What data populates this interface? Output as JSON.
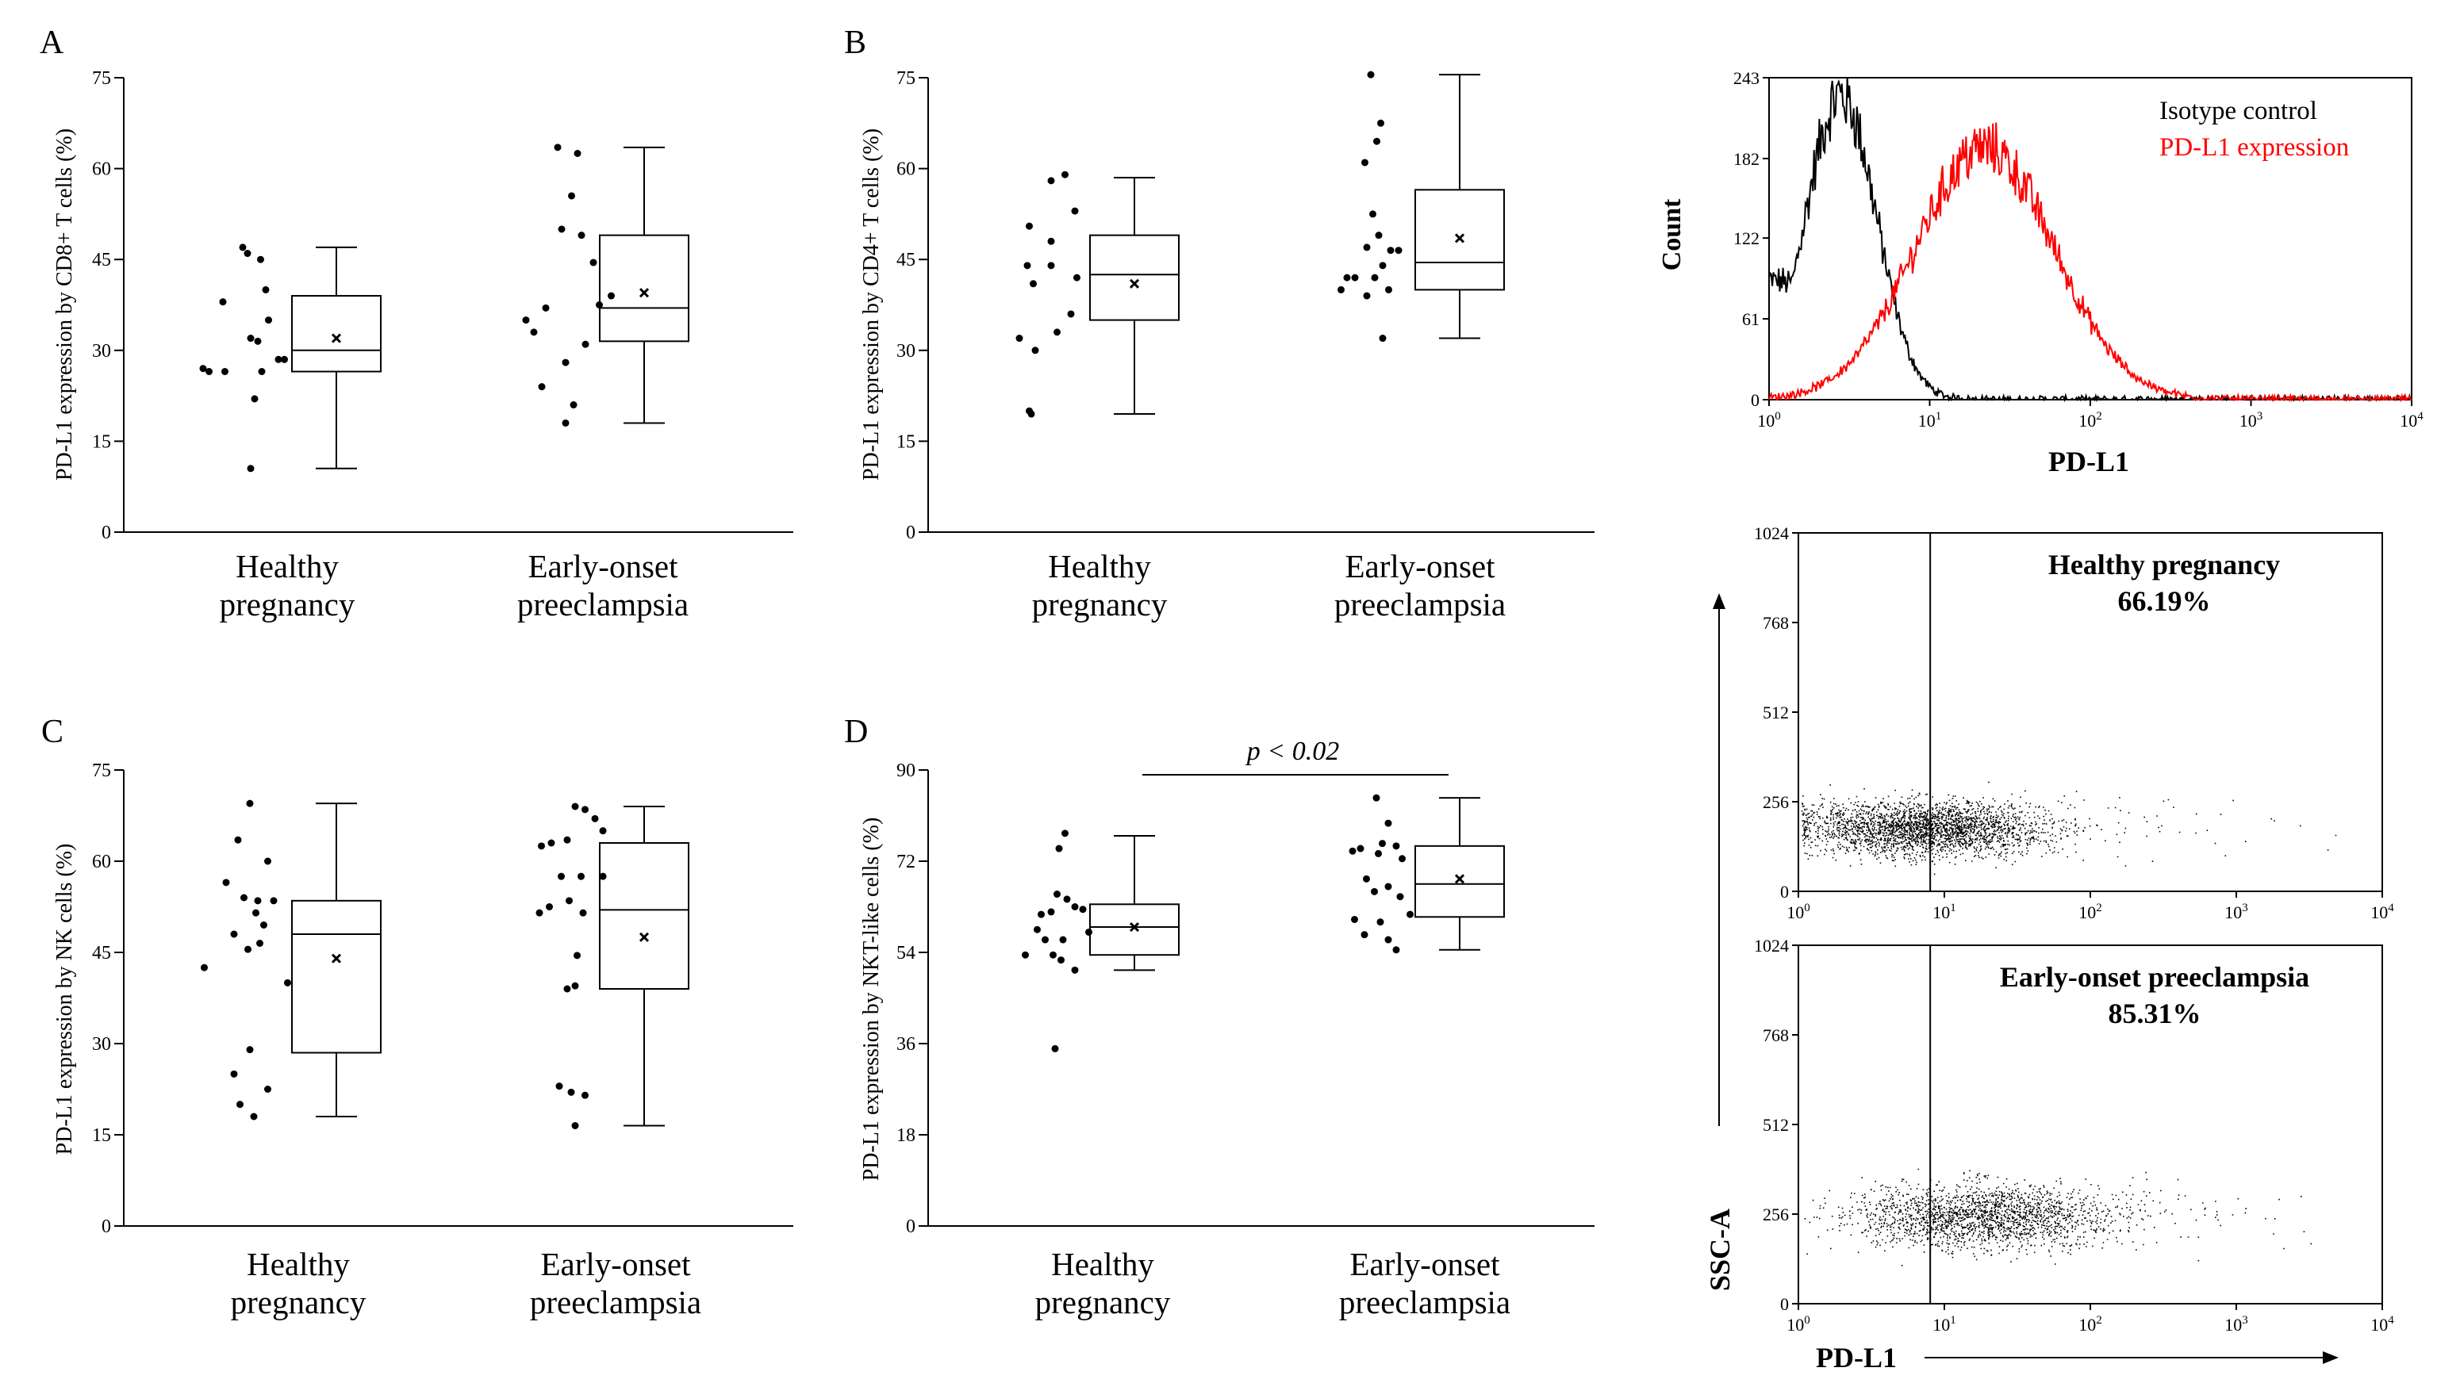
{
  "panels": {
    "A": {
      "letter": "A",
      "ylabel": "PD-L1 expression by CD8+ T cells (%)"
    },
    "B": {
      "letter": "B",
      "ylabel": "PD-L1 expression by CD4+ T cells (%)"
    },
    "C": {
      "letter": "C",
      "ylabel": "PD-L1 expression by NK cells (%)"
    },
    "D": {
      "letter": "D",
      "ylabel": "PD-L1 expression by NKT-like cells (%)",
      "annotation": "p < 0.02"
    }
  },
  "groups": {
    "healthy": [
      "Healthy",
      "pregnancy"
    ],
    "pe": [
      "Early-onset",
      "preeclampsia"
    ]
  },
  "histogram": {
    "ylabel": "Count",
    "xlabel": "PD-L1",
    "legend_iso": "Isotype control",
    "legend_pdl1": "PD-L1 expression",
    "color_iso": "#000000",
    "color_pdl1": "#ff0000"
  },
  "flow": {
    "ylabel": "SSC-A",
    "xlabel": "PD-L1",
    "healthy_title": "Healthy pregnancy",
    "healthy_value": "66.19%",
    "pe_title": "Early-onset preeclampsia",
    "pe_value": "85.31%"
  },
  "chart_data": [
    {
      "type": "box",
      "id": "A",
      "ylabel": "PD-L1 expression by CD8+ T cells (%)",
      "ylim": [
        0,
        75
      ],
      "yticks": [
        0,
        15,
        30,
        45,
        60,
        75
      ],
      "categories": [
        "Healthy pregnancy",
        "Early-onset preeclampsia"
      ],
      "boxes": [
        {
          "min": 10.5,
          "q1": 26.5,
          "median": 30,
          "q3": 39,
          "max": 47,
          "mean": 32
        },
        {
          "min": 18,
          "q1": 31.5,
          "median": 37,
          "q3": 49,
          "max": 63.5,
          "mean": 39.5
        }
      ],
      "points": [
        [
          {
            "x": 0,
            "y": 47
          },
          {
            "x": 0.12,
            "y": 46
          },
          {
            "x": 0.45,
            "y": 45
          },
          {
            "x": 0.58,
            "y": 40
          },
          {
            "x": -0.5,
            "y": 38
          },
          {
            "x": 0.65,
            "y": 35
          },
          {
            "x": 0.2,
            "y": 32
          },
          {
            "x": 0.38,
            "y": 31.5
          },
          {
            "x": 0.9,
            "y": 28.5
          },
          {
            "x": 1.05,
            "y": 28.5
          },
          {
            "x": -1.0,
            "y": 27
          },
          {
            "x": -0.85,
            "y": 26.5
          },
          {
            "x": -0.45,
            "y": 26.5
          },
          {
            "x": 0.48,
            "y": 26.5
          },
          {
            "x": 0.3,
            "y": 22
          },
          {
            "x": 0.2,
            "y": 10.5
          }
        ],
        [
          {
            "x": -0.3,
            "y": 63.5
          },
          {
            "x": 0.2,
            "y": 62.5
          },
          {
            "x": 0.05,
            "y": 55.5
          },
          {
            "x": -0.2,
            "y": 50
          },
          {
            "x": 0.3,
            "y": 49
          },
          {
            "x": 0.6,
            "y": 44.5
          },
          {
            "x": 1.05,
            "y": 39
          },
          {
            "x": 0.75,
            "y": 37.5
          },
          {
            "x": -0.6,
            "y": 37
          },
          {
            "x": -1.1,
            "y": 35
          },
          {
            "x": -0.9,
            "y": 33
          },
          {
            "x": 0.4,
            "y": 31
          },
          {
            "x": -0.1,
            "y": 28
          },
          {
            "x": -0.7,
            "y": 24
          },
          {
            "x": 0.1,
            "y": 21
          },
          {
            "x": -0.1,
            "y": 18
          }
        ]
      ]
    },
    {
      "type": "box",
      "id": "B",
      "ylabel": "PD-L1 expression by CD4+ T cells (%)",
      "ylim": [
        0,
        75
      ],
      "yticks": [
        0,
        15,
        30,
        45,
        60,
        75
      ],
      "categories": [
        "Healthy pregnancy",
        "Early-onset preeclampsia"
      ],
      "boxes": [
        {
          "min": 19.5,
          "q1": 35,
          "median": 42.5,
          "q3": 49,
          "max": 58.5,
          "mean": 41
        },
        {
          "min": 32,
          "q1": 40,
          "median": 44.5,
          "q3": 56.5,
          "max": 75.5,
          "mean": 48.5
        }
      ],
      "points": [
        [
          {
            "x": 0.45,
            "y": 59
          },
          {
            "x": 0.1,
            "y": 58
          },
          {
            "x": 0.7,
            "y": 53
          },
          {
            "x": -0.45,
            "y": 50.5
          },
          {
            "x": 0.1,
            "y": 48
          },
          {
            "x": -0.5,
            "y": 44
          },
          {
            "x": 0.1,
            "y": 44
          },
          {
            "x": 0.75,
            "y": 42
          },
          {
            "x": -0.35,
            "y": 41
          },
          {
            "x": 0.6,
            "y": 36
          },
          {
            "x": 0.25,
            "y": 33
          },
          {
            "x": -0.7,
            "y": 32
          },
          {
            "x": -0.3,
            "y": 30
          },
          {
            "x": -0.45,
            "y": 20
          },
          {
            "x": -0.4,
            "y": 19.5
          }
        ],
        [
          {
            "x": 0.2,
            "y": 75.5
          },
          {
            "x": 0.45,
            "y": 67.5
          },
          {
            "x": 0.35,
            "y": 64.5
          },
          {
            "x": 0.05,
            "y": 61
          },
          {
            "x": 0.25,
            "y": 52.5
          },
          {
            "x": 0.4,
            "y": 49
          },
          {
            "x": 0.1,
            "y": 47
          },
          {
            "x": 0.7,
            "y": 46.5
          },
          {
            "x": 0.9,
            "y": 46.5
          },
          {
            "x": 0.5,
            "y": 44
          },
          {
            "x": -0.4,
            "y": 42
          },
          {
            "x": -0.2,
            "y": 42
          },
          {
            "x": 0.3,
            "y": 42
          },
          {
            "x": -0.55,
            "y": 40
          },
          {
            "x": 0.65,
            "y": 40
          },
          {
            "x": 0.1,
            "y": 39
          },
          {
            "x": 0.5,
            "y": 32
          }
        ]
      ]
    },
    {
      "type": "box",
      "id": "C",
      "ylabel": "PD-L1 expression by NK cells (%)",
      "ylim": [
        0,
        75
      ],
      "yticks": [
        0,
        15,
        30,
        45,
        60,
        75
      ],
      "categories": [
        "Healthy pregnancy",
        "Early-onset preeclampsia"
      ],
      "boxes": [
        {
          "min": 18,
          "q1": 28.5,
          "median": 48,
          "q3": 53.5,
          "max": 69.5,
          "mean": 44
        },
        {
          "min": 16.5,
          "q1": 39,
          "median": 52,
          "q3": 63,
          "max": 69,
          "mean": 47.5
        }
      ],
      "points": [
        [
          {
            "x": 0.1,
            "y": 69.5
          },
          {
            "x": -0.2,
            "y": 63.5
          },
          {
            "x": 0.55,
            "y": 60
          },
          {
            "x": -0.5,
            "y": 56.5
          },
          {
            "x": -0.05,
            "y": 54
          },
          {
            "x": 0.3,
            "y": 53.5
          },
          {
            "x": 0.7,
            "y": 53.5
          },
          {
            "x": 0.25,
            "y": 51.5
          },
          {
            "x": 0.45,
            "y": 49.5
          },
          {
            "x": -0.3,
            "y": 48
          },
          {
            "x": 0.35,
            "y": 46.5
          },
          {
            "x": 0.05,
            "y": 45.5
          },
          {
            "x": -1.05,
            "y": 42.5
          },
          {
            "x": 1.05,
            "y": 40
          },
          {
            "x": 0.1,
            "y": 29
          },
          {
            "x": -0.3,
            "y": 25
          },
          {
            "x": 0.55,
            "y": 22.5
          },
          {
            "x": -0.15,
            "y": 20
          },
          {
            "x": 0.2,
            "y": 18
          }
        ],
        [
          {
            "x": 0.1,
            "y": 69
          },
          {
            "x": 0.35,
            "y": 68.5
          },
          {
            "x": 0.6,
            "y": 67
          },
          {
            "x": 0.8,
            "y": 65
          },
          {
            "x": -0.1,
            "y": 63.5
          },
          {
            "x": -0.5,
            "y": 63
          },
          {
            "x": -0.75,
            "y": 62.5
          },
          {
            "x": -0.25,
            "y": 57.5
          },
          {
            "x": 0.25,
            "y": 57.5
          },
          {
            "x": 0.8,
            "y": 57.5
          },
          {
            "x": -0.05,
            "y": 53.5
          },
          {
            "x": -0.55,
            "y": 52.5
          },
          {
            "x": -0.8,
            "y": 51.5
          },
          {
            "x": 0.3,
            "y": 51.5
          },
          {
            "x": 0.15,
            "y": 44.5
          },
          {
            "x": 0.1,
            "y": 39.5
          },
          {
            "x": -0.1,
            "y": 39
          },
          {
            "x": -0.3,
            "y": 23
          },
          {
            "x": 0,
            "y": 22
          },
          {
            "x": 0.35,
            "y": 21.5
          },
          {
            "x": 0.1,
            "y": 16.5
          }
        ]
      ]
    },
    {
      "type": "box",
      "id": "D",
      "ylabel": "PD-L1 expression by NKT-like cells (%)",
      "ylim": [
        0,
        90
      ],
      "yticks": [
        0,
        18,
        36,
        54,
        72,
        90
      ],
      "categories": [
        "Healthy pregnancy",
        "Early-onset preeclampsia"
      ],
      "boxes": [
        {
          "min": 50.5,
          "q1": 53.5,
          "median": 59,
          "q3": 63.5,
          "max": 77,
          "mean": 59
        },
        {
          "min": 54.5,
          "q1": 61,
          "median": 67.5,
          "q3": 75,
          "max": 84.5,
          "mean": 68.5
        }
      ],
      "annotation": "p < 0.02",
      "points": [
        [
          {
            "x": 0.25,
            "y": 77.5
          },
          {
            "x": 0.1,
            "y": 74.5
          },
          {
            "x": 0.05,
            "y": 65.5
          },
          {
            "x": 0.3,
            "y": 64.5
          },
          {
            "x": 0.5,
            "y": 63
          },
          {
            "x": 0.7,
            "y": 62.5
          },
          {
            "x": -0.35,
            "y": 61.5
          },
          {
            "x": -0.1,
            "y": 62
          },
          {
            "x": -0.45,
            "y": 58.5
          },
          {
            "x": 0.85,
            "y": 58
          },
          {
            "x": -0.25,
            "y": 56.5
          },
          {
            "x": 0.2,
            "y": 56.5
          },
          {
            "x": -0.75,
            "y": 53.5
          },
          {
            "x": -0.05,
            "y": 53.5
          },
          {
            "x": 0.15,
            "y": 52.5
          },
          {
            "x": 0.5,
            "y": 50.5
          },
          {
            "x": 0,
            "y": 35
          }
        ],
        [
          {
            "x": 0.1,
            "y": 84.5
          },
          {
            "x": 0.4,
            "y": 79.5
          },
          {
            "x": 0.25,
            "y": 75.5
          },
          {
            "x": 0.6,
            "y": 75
          },
          {
            "x": -0.5,
            "y": 74
          },
          {
            "x": -0.3,
            "y": 74.5
          },
          {
            "x": 0.15,
            "y": 73.5
          },
          {
            "x": 0.75,
            "y": 72.5
          },
          {
            "x": -0.15,
            "y": 68.5
          },
          {
            "x": 0.4,
            "y": 67
          },
          {
            "x": 0.05,
            "y": 66
          },
          {
            "x": 0.7,
            "y": 65
          },
          {
            "x": 0.95,
            "y": 61.5
          },
          {
            "x": -0.45,
            "y": 60.5
          },
          {
            "x": 0.2,
            "y": 60
          },
          {
            "x": -0.2,
            "y": 57.5
          },
          {
            "x": 0.4,
            "y": 56.5
          },
          {
            "x": 0.6,
            "y": 54.5
          }
        ]
      ]
    },
    {
      "type": "histogram",
      "id": "E",
      "xlabel": "PD-L1",
      "ylabel": "Count",
      "xscale": "log",
      "xlim": [
        1,
        10000
      ],
      "ylim": [
        0,
        243
      ],
      "yticks": [
        0,
        61,
        122,
        182,
        243
      ],
      "xticks": [
        "10^0",
        "10^1",
        "10^2",
        "10^3",
        "10^4"
      ],
      "series": [
        {
          "name": "Isotype control",
          "color": "#000000",
          "peak_x": 2.8,
          "peak_count": 230,
          "log_sd": 0.22,
          "start_count": 90
        },
        {
          "name": "PD-L1 expression",
          "color": "#ff0000",
          "peak_x": 22,
          "peak_count": 190,
          "log_sd": 0.43,
          "start_count": 10
        }
      ]
    },
    {
      "type": "scatter",
      "id": "F",
      "title": "Healthy pregnancy",
      "value_label": "66.19%",
      "xscale": "log",
      "xlim": [
        1,
        10000
      ],
      "ylim": [
        0,
        1024
      ],
      "yticks": [
        0,
        256,
        512,
        768,
        1024
      ],
      "gate_x": 8,
      "cloud": {
        "x_center_log": 0.85,
        "x_sd_log": 0.42,
        "y_center": 180,
        "y_sd": 38,
        "n": 4200
      }
    },
    {
      "type": "scatter",
      "id": "G",
      "title": "Early-onset preeclampsia",
      "value_label": "85.31%",
      "xlabel": "PD-L1",
      "ylabel": "SSC-A",
      "xscale": "log",
      "xlim": [
        1,
        10000
      ],
      "ylim": [
        0,
        1024
      ],
      "yticks": [
        0,
        256,
        512,
        768,
        1024
      ],
      "gate_x": 8,
      "cloud": {
        "x_center_log": 1.25,
        "x_sd_log": 0.45,
        "y_center": 250,
        "y_sd": 45,
        "n": 4600
      }
    }
  ]
}
